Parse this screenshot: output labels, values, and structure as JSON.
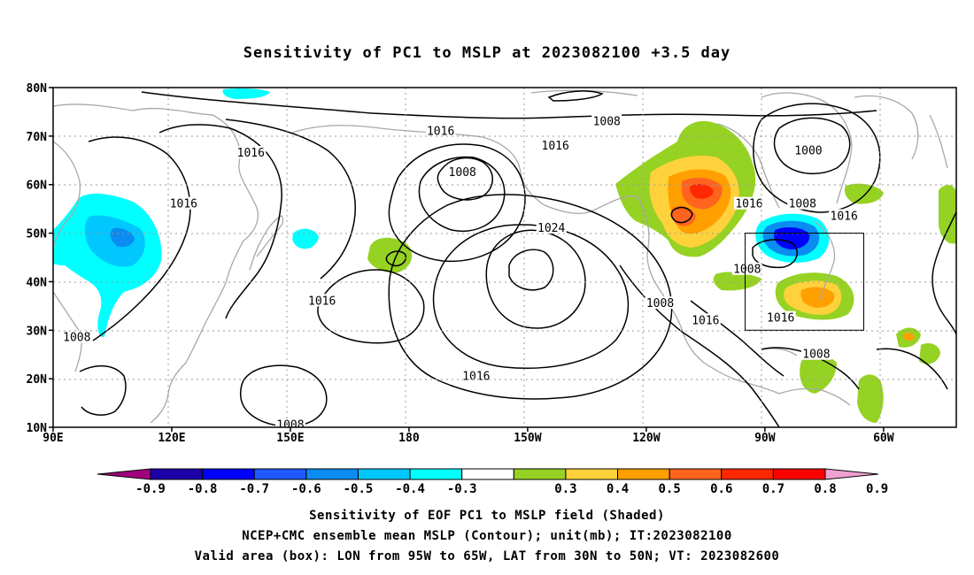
{
  "title": "Sensitivity of PC1 to MSLP at 2023082100 +3.5 day",
  "lat_labels": [
    "80N",
    "70N",
    "60N",
    "50N",
    "40N",
    "30N",
    "20N",
    "10N"
  ],
  "lon_labels": [
    "90E",
    "120E",
    "150E",
    "180",
    "150W",
    "120W",
    "90W",
    "60W"
  ],
  "contour_labels": [
    {
      "text": "1016",
      "lon": 140.0,
      "lat": 66.5
    },
    {
      "text": "1016",
      "lon": 188.0,
      "lat": 71.0
    },
    {
      "text": "1016",
      "lon": 217.0,
      "lat": 68.0
    },
    {
      "text": "1008",
      "lon": 230.0,
      "lat": 73.0
    },
    {
      "text": "1008",
      "lon": 193.5,
      "lat": 62.5
    },
    {
      "text": "1016",
      "lon": 123.0,
      "lat": 56.0
    },
    {
      "text": "1024",
      "lon": 216.0,
      "lat": 51.0
    },
    {
      "text": "1000",
      "lon": 281.0,
      "lat": 67.0
    },
    {
      "text": "1016",
      "lon": 266.0,
      "lat": 56.0
    },
    {
      "text": "1008",
      "lon": 279.5,
      "lat": 56.0
    },
    {
      "text": "1016",
      "lon": 290.0,
      "lat": 53.5
    },
    {
      "text": "1008",
      "lon": 265.5,
      "lat": 42.5
    },
    {
      "text": "1016",
      "lon": 158.0,
      "lat": 36.0
    },
    {
      "text": "1008",
      "lon": 96.0,
      "lat": 28.5
    },
    {
      "text": "1008",
      "lon": 243.5,
      "lat": 35.5
    },
    {
      "text": "1016",
      "lon": 255.0,
      "lat": 32.0
    },
    {
      "text": "1016",
      "lon": 274.0,
      "lat": 32.5
    },
    {
      "text": "1016",
      "lon": 197.0,
      "lat": 20.5
    },
    {
      "text": "1008",
      "lon": 283.0,
      "lat": 25.0
    },
    {
      "text": "1008",
      "lon": 150.0,
      "lat": 10.5
    }
  ],
  "colorbar": {
    "colors": [
      "#a0007f",
      "#1c00a8",
      "#0000ff",
      "#1e5aff",
      "#0a8cf0",
      "#00c8ff",
      "#00ffff",
      "#ffffff",
      "#96d223",
      "#ffd23c",
      "#ffa000",
      "#ff641e",
      "#ff2800",
      "#ff0000",
      "#f0a0d2"
    ],
    "labels": [
      "-0.9",
      "-0.8",
      "-0.7",
      "-0.6",
      "-0.5",
      "-0.4",
      "-0.3",
      "0.3",
      "0.4",
      "0.5",
      "0.6",
      "0.7",
      "0.8",
      "0.9"
    ]
  },
  "valid_box": {
    "lon_min": 265,
    "lon_max": 295,
    "lat_min": 30,
    "lat_max": 50
  },
  "captions": [
    "Sensitivity of EOF PC1 to MSLP field (Shaded)",
    "NCEP+CMC ensemble mean MSLP (Contour); unit(mb); IT:2023082100",
    "Valid area (box): LON from 95W to 65W, LAT from 30N to 50N; VT: 2023082600"
  ]
}
